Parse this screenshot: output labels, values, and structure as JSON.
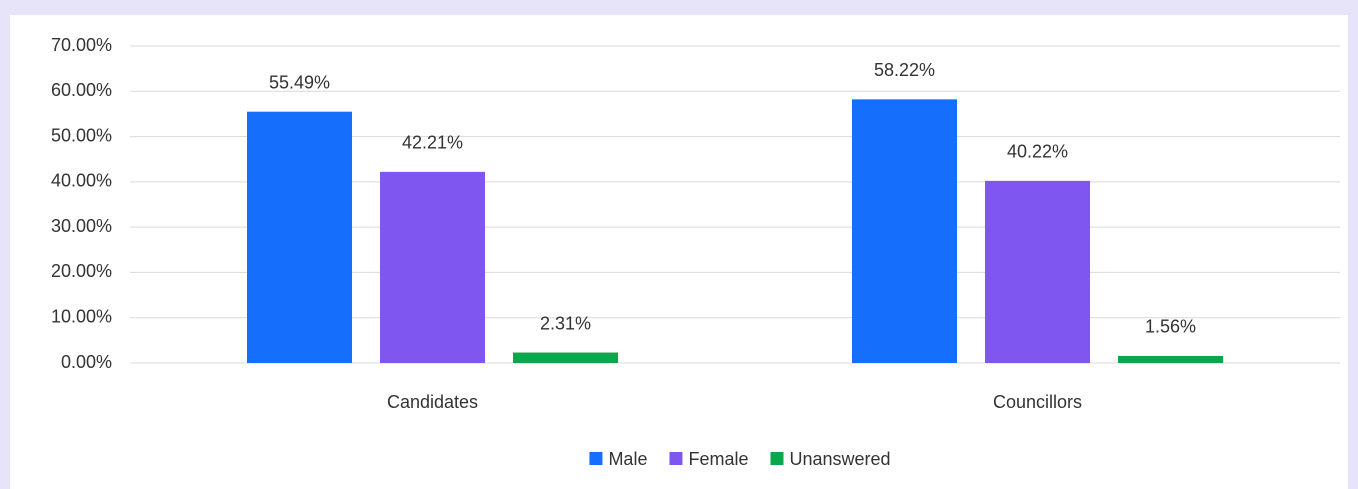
{
  "chart_data": {
    "type": "bar",
    "categories": [
      "Candidates",
      "Councillors"
    ],
    "series": [
      {
        "name": "Male",
        "color": "#166efc",
        "values": [
          55.49,
          58.22
        ],
        "value_labels": [
          "55.49%",
          "58.22%"
        ]
      },
      {
        "name": "Female",
        "color": "#7f57f0",
        "values": [
          42.21,
          40.22
        ],
        "value_labels": [
          "42.21%",
          "40.22%"
        ]
      },
      {
        "name": "Unanswered",
        "color": "#0aa84a",
        "values": [
          2.31,
          1.56
        ],
        "value_labels": [
          "2.31%",
          "1.56%"
        ]
      }
    ],
    "ylim": [
      0,
      70
    ],
    "yticks": [
      {
        "value": 0,
        "label": "0.00%"
      },
      {
        "value": 10,
        "label": "10.00%"
      },
      {
        "value": 20,
        "label": "20.00%"
      },
      {
        "value": 30,
        "label": "30.00%"
      },
      {
        "value": 40,
        "label": "40.00%"
      },
      {
        "value": 50,
        "label": "50.00%"
      },
      {
        "value": 60,
        "label": "60.00%"
      },
      {
        "value": 70,
        "label": "70.00%"
      }
    ],
    "grid": true,
    "legend": "bottom"
  }
}
